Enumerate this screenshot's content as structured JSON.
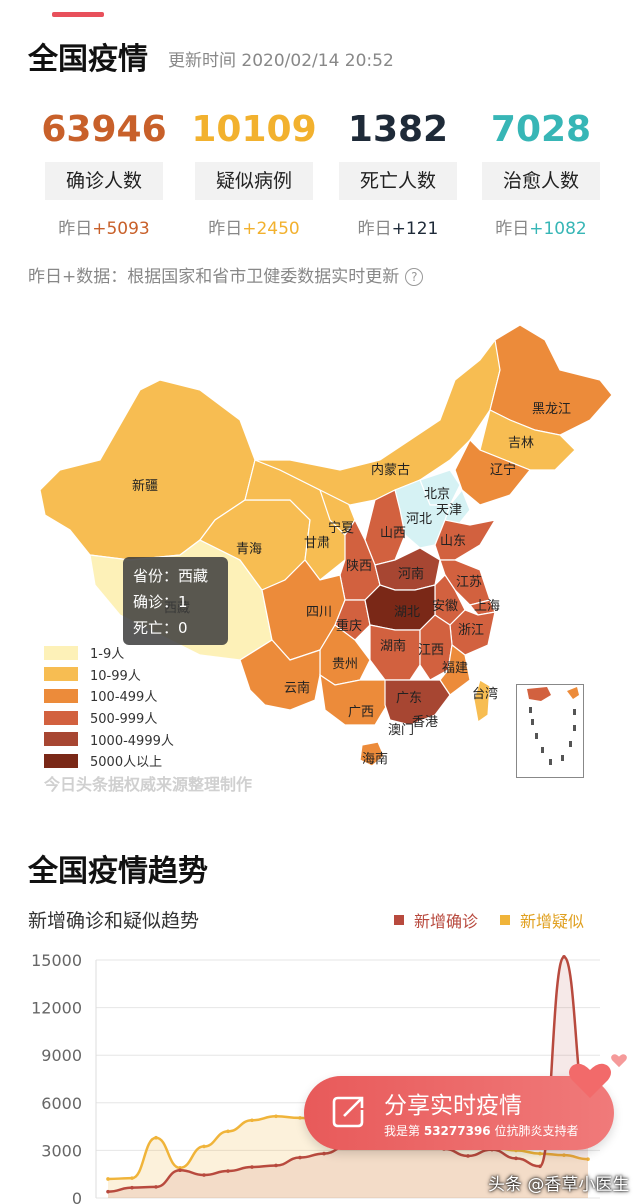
{
  "header": {
    "title": "全国疫情",
    "update_time": "更新时间 2020/02/14 20:52"
  },
  "stats": [
    {
      "value": "63946",
      "label": "确诊人数",
      "delta_prefix": "昨日",
      "delta": "+5093",
      "color": "#c8602a"
    },
    {
      "value": "10109",
      "label": "疑似病例",
      "delta_prefix": "昨日",
      "delta": "+2450",
      "color": "#f2b12e"
    },
    {
      "value": "1382",
      "label": "死亡人数",
      "delta_prefix": "昨日",
      "delta": "+121",
      "color": "#1e2a38"
    },
    {
      "value": "7028",
      "label": "治愈人数",
      "delta_prefix": "昨日",
      "delta": "+1082",
      "color": "#37b6b6"
    }
  ],
  "note": "昨日+数据：根据国家和省市卫健委数据实时更新",
  "note_icon": "question-icon",
  "map": {
    "tooltip": {
      "province": "省份：西藏",
      "confirmed": "确诊：1",
      "deaths": "死亡：0"
    },
    "legend": [
      {
        "label": "1-9人",
        "color": "#fdf1b8"
      },
      {
        "label": "10-99人",
        "color": "#f7bd52"
      },
      {
        "label": "100-499人",
        "color": "#ec8b3a"
      },
      {
        "label": "500-999人",
        "color": "#d2613f"
      },
      {
        "label": "1000-4999人",
        "color": "#a74632"
      },
      {
        "label": "5000人以上",
        "color": "#7a2817"
      }
    ],
    "source": "今日头条据权威来源整理制作",
    "provinces": [
      {
        "name": "新疆"
      },
      {
        "name": "西藏"
      },
      {
        "name": "青海"
      },
      {
        "name": "甘肃"
      },
      {
        "name": "宁夏"
      },
      {
        "name": "内蒙古"
      },
      {
        "name": "黑龙江"
      },
      {
        "name": "吉林"
      },
      {
        "name": "辽宁"
      },
      {
        "name": "北京"
      },
      {
        "name": "天津"
      },
      {
        "name": "河北"
      },
      {
        "name": "山西"
      },
      {
        "name": "山东"
      },
      {
        "name": "陕西"
      },
      {
        "name": "河南"
      },
      {
        "name": "江苏"
      },
      {
        "name": "四川"
      },
      {
        "name": "重庆"
      },
      {
        "name": "湖北"
      },
      {
        "name": "安徽"
      },
      {
        "name": "上海"
      },
      {
        "name": "浙江"
      },
      {
        "name": "湖南"
      },
      {
        "name": "江西"
      },
      {
        "name": "贵州"
      },
      {
        "name": "云南"
      },
      {
        "name": "广西"
      },
      {
        "name": "广东"
      },
      {
        "name": "福建"
      },
      {
        "name": "台湾"
      },
      {
        "name": "澳门"
      },
      {
        "name": "香港"
      },
      {
        "name": "海南"
      }
    ]
  },
  "trend": {
    "section_title": "全国疫情趋势",
    "chart_title": "新增确诊和疑似趋势",
    "legend": [
      {
        "name": "新增确诊",
        "color": "#b84a3e"
      },
      {
        "name": "新增疑似",
        "color": "#f0b43a"
      }
    ]
  },
  "chart_data": {
    "type": "line",
    "title": "新增确诊和疑似趋势",
    "ylim": [
      0,
      15000
    ],
    "yticks": [
      "15000",
      "12000",
      "9000",
      "6000",
      "3000",
      "0"
    ],
    "series": [
      {
        "name": "新增确诊",
        "values": [
          400,
          650,
          700,
          1750,
          1450,
          1700,
          1950,
          2050,
          2550,
          2800,
          3300,
          3850,
          3700,
          3250,
          3100,
          2650,
          3050,
          2500,
          2000,
          15200,
          5100
        ]
      },
      {
        "name": "新增疑似",
        "values": [
          1200,
          1250,
          3800,
          1900,
          3250,
          4200,
          4900,
          5150,
          5050,
          4900,
          4650,
          4500,
          4250,
          4000,
          3700,
          3400,
          3200,
          3000,
          2800,
          2700,
          2450
        ]
      }
    ]
  },
  "share": {
    "title": "分享实时疫情",
    "sub_prefix": "我是第",
    "sub_count": "53277396",
    "sub_suffix": "位抗肺炎支持者"
  },
  "watermark": "头条 @香草小医生"
}
